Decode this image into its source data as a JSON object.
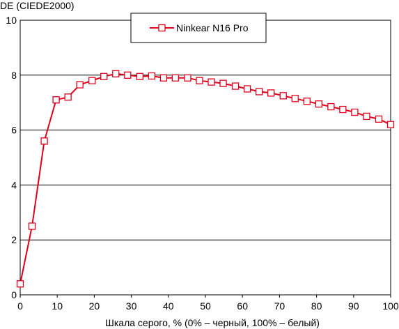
{
  "chart_data": {
    "type": "line",
    "ylabel": "DE (CIEDE2000)",
    "xlabel": "Шкала серого, % (0% – черный, 100% – белый)",
    "xlim": [
      0,
      100
    ],
    "ylim": [
      0,
      10
    ],
    "xticks": [
      "0",
      "10",
      "20",
      "30",
      "40",
      "50",
      "60",
      "70",
      "80",
      "90",
      "100"
    ],
    "yticks": [
      "0",
      "2",
      "4",
      "6",
      "8",
      "10"
    ],
    "grid": "horizontal",
    "legend_position": "top-center",
    "series": [
      {
        "name": "Ninkear N16 Pro",
        "color": "#e0001b",
        "marker": "open-square",
        "x": [
          0,
          3.2,
          6.5,
          9.7,
          12.9,
          16.1,
          19.4,
          22.6,
          25.8,
          29.0,
          32.3,
          35.5,
          38.7,
          41.9,
          45.2,
          48.4,
          51.6,
          54.8,
          58.1,
          61.3,
          64.5,
          67.7,
          71.0,
          74.2,
          77.4,
          80.6,
          83.9,
          87.1,
          90.3,
          93.5,
          96.8,
          100
        ],
        "y": [
          0.4,
          2.5,
          5.6,
          7.1,
          7.2,
          7.65,
          7.8,
          7.95,
          8.05,
          8.0,
          7.95,
          7.97,
          7.9,
          7.9,
          7.9,
          7.8,
          7.75,
          7.7,
          7.6,
          7.5,
          7.4,
          7.35,
          7.25,
          7.15,
          7.05,
          6.95,
          6.85,
          6.75,
          6.65,
          6.5,
          6.4,
          6.2
        ]
      }
    ]
  }
}
